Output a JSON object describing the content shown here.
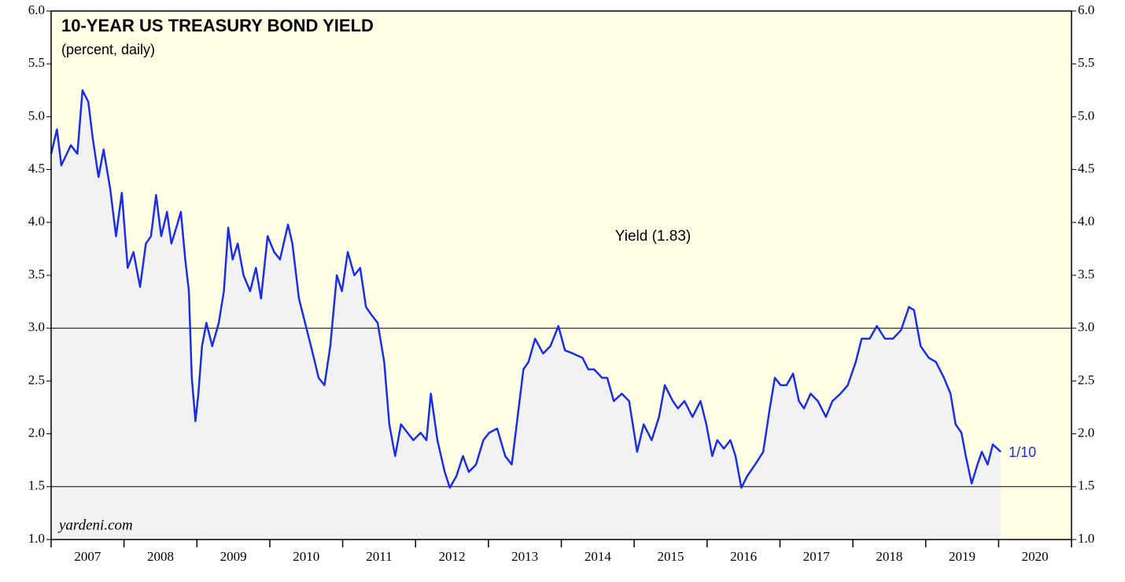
{
  "chart_data": {
    "type": "line",
    "title": "10-YEAR US TREASURY BOND YIELD",
    "subtitle": "(percent, daily)",
    "source": "yardeni.com",
    "end_label": "1/10",
    "categories": [
      "2007",
      "2008",
      "2009",
      "2010",
      "2011",
      "2012",
      "2013",
      "2014",
      "2015",
      "2016",
      "2017",
      "2018",
      "2019",
      "2020"
    ],
    "xlim": [
      2007,
      2021
    ],
    "ylim": [
      1,
      6
    ],
    "yticks": [
      {
        "value": 1,
        "label": "1.0"
      },
      {
        "value": 1.5,
        "label": "1.5"
      },
      {
        "value": 2,
        "label": "2.0"
      },
      {
        "value": 2.5,
        "label": "2.5"
      },
      {
        "value": 3,
        "label": "3.0"
      },
      {
        "value": 3.5,
        "label": "3.5"
      },
      {
        "value": 4,
        "label": "4.0"
      },
      {
        "value": 4.5,
        "label": "4.5"
      },
      {
        "value": 5,
        "label": "5.0"
      },
      {
        "value": 5.5,
        "label": "5.5"
      },
      {
        "value": 6,
        "label": "6.0"
      }
    ],
    "reference_lines": [
      3,
      1.5
    ],
    "x": [
      2007.0,
      2007.08,
      2007.14,
      2007.27,
      2007.36,
      2007.43,
      2007.51,
      2007.57,
      2007.65,
      2007.72,
      2007.81,
      2007.89,
      2007.97,
      2008.05,
      2008.13,
      2008.22,
      2008.3,
      2008.37,
      2008.44,
      2008.51,
      2008.59,
      2008.65,
      2008.73,
      2008.78,
      2008.84,
      2008.89,
      2008.93,
      2008.98,
      2009.02,
      2009.07,
      2009.13,
      2009.21,
      2009.3,
      2009.37,
      2009.43,
      2009.49,
      2009.56,
      2009.64,
      2009.73,
      2009.81,
      2009.88,
      2009.97,
      2010.06,
      2010.14,
      2010.25,
      2010.31,
      2010.4,
      2010.51,
      2010.59,
      2010.67,
      2010.75,
      2010.83,
      2010.92,
      2010.99,
      2011.07,
      2011.16,
      2011.24,
      2011.32,
      2011.39,
      2011.48,
      2011.57,
      2011.64,
      2011.72,
      2011.8,
      2011.89,
      2011.97,
      2012.07,
      2012.15,
      2012.21,
      2012.3,
      2012.4,
      2012.47,
      2012.56,
      2012.65,
      2012.73,
      2012.83,
      2012.93,
      2013.01,
      2013.12,
      2013.23,
      2013.32,
      2013.4,
      2013.48,
      2013.55,
      2013.64,
      2013.75,
      2013.85,
      2013.96,
      2014.05,
      2014.16,
      2014.29,
      2014.37,
      2014.45,
      2014.56,
      2014.63,
      2014.72,
      2014.83,
      2014.93,
      2015.04,
      2015.13,
      2015.24,
      2015.34,
      2015.42,
      2015.53,
      2015.6,
      2015.69,
      2015.8,
      2015.91,
      2015.99,
      2016.07,
      2016.14,
      2016.23,
      2016.32,
      2016.39,
      2016.47,
      2016.55,
      2016.66,
      2016.77,
      2016.86,
      2016.93,
      2017.01,
      2017.09,
      2017.18,
      2017.26,
      2017.33,
      2017.42,
      2017.52,
      2017.63,
      2017.72,
      2017.83,
      2017.93,
      2018.04,
      2018.12,
      2018.23,
      2018.33,
      2018.44,
      2018.55,
      2018.66,
      2018.77,
      2018.84,
      2018.93,
      2019.04,
      2019.14,
      2019.25,
      2019.34,
      2019.41,
      2019.49,
      2019.55,
      2019.63,
      2019.71,
      2019.77,
      2019.85,
      2019.92,
      2020.03
    ],
    "series": [
      {
        "name": "Yield (1.83)",
        "color": "#1a2ee8",
        "values": [
          4.65,
          4.88,
          4.54,
          4.73,
          4.65,
          5.25,
          5.14,
          4.8,
          4.43,
          4.69,
          4.32,
          3.87,
          4.28,
          3.57,
          3.72,
          3.39,
          3.8,
          3.87,
          4.26,
          3.87,
          4.1,
          3.8,
          3.98,
          4.1,
          3.65,
          3.35,
          2.53,
          2.12,
          2.38,
          2.83,
          3.05,
          2.83,
          3.05,
          3.35,
          3.95,
          3.65,
          3.8,
          3.5,
          3.35,
          3.57,
          3.28,
          3.87,
          3.72,
          3.65,
          3.98,
          3.8,
          3.28,
          2.98,
          2.76,
          2.53,
          2.46,
          2.83,
          3.5,
          3.35,
          3.72,
          3.5,
          3.57,
          3.2,
          3.13,
          3.05,
          2.68,
          2.09,
          1.79,
          2.09,
          2.01,
          1.94,
          2.01,
          1.94,
          2.38,
          1.94,
          1.64,
          1.49,
          1.6,
          1.79,
          1.64,
          1.71,
          1.94,
          2.01,
          2.05,
          1.79,
          1.71,
          2.16,
          2.61,
          2.68,
          2.9,
          2.76,
          2.83,
          3.02,
          2.79,
          2.76,
          2.72,
          2.61,
          2.61,
          2.53,
          2.53,
          2.31,
          2.38,
          2.31,
          1.83,
          2.09,
          1.94,
          2.16,
          2.46,
          2.31,
          2.24,
          2.31,
          2.16,
          2.31,
          2.09,
          1.79,
          1.94,
          1.86,
          1.94,
          1.79,
          1.49,
          1.6,
          1.71,
          1.83,
          2.24,
          2.53,
          2.46,
          2.46,
          2.57,
          2.31,
          2.24,
          2.38,
          2.31,
          2.16,
          2.31,
          2.38,
          2.46,
          2.68,
          2.9,
          2.9,
          3.02,
          2.9,
          2.9,
          2.98,
          3.2,
          3.17,
          2.83,
          2.72,
          2.68,
          2.53,
          2.38,
          2.09,
          2.01,
          1.79,
          1.53,
          1.71,
          1.83,
          1.71,
          1.9,
          1.83
        ]
      }
    ],
    "background": "#ffffe6",
    "fill_color": "#f2f2f2"
  }
}
